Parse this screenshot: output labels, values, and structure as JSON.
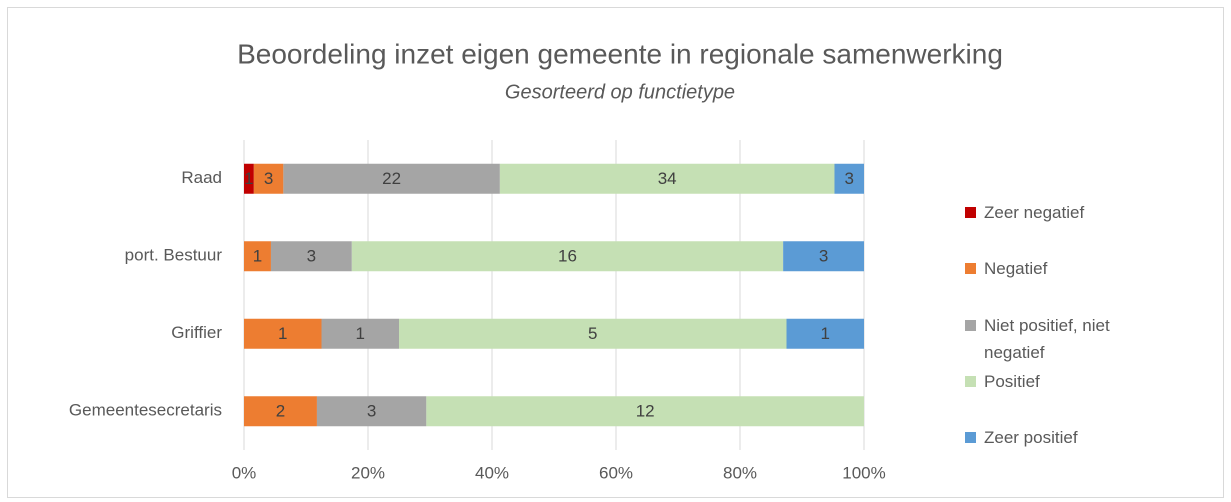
{
  "chart_data": {
    "type": "stacked_bar_percent",
    "orientation": "horizontal",
    "title": "Beoordeling inzet eigen gemeente in regionale samenwerking",
    "subtitle": "Gesorteerd op functietype",
    "categories": [
      "Raad",
      "port. Bestuur",
      "Griffier",
      "Gemeentesecretaris"
    ],
    "series": [
      {
        "name": "Zeer negatief",
        "color": "#c00000",
        "values": [
          1,
          null,
          null,
          null
        ]
      },
      {
        "name": "Negatief",
        "color": "#ed7d31",
        "values": [
          3,
          1,
          1,
          2
        ]
      },
      {
        "name": "Niet positief, niet negatief",
        "color": "#a5a5a5",
        "values": [
          22,
          3,
          1,
          3
        ]
      },
      {
        "name": "Positief",
        "color": "#c5e0b4",
        "values": [
          34,
          16,
          5,
          12
        ]
      },
      {
        "name": "Zeer positief",
        "color": "#5b9bd5",
        "values": [
          3,
          3,
          1,
          null
        ]
      }
    ],
    "xlim": [
      0,
      100
    ],
    "xticks": [
      {
        "value": 0,
        "label": "0%"
      },
      {
        "value": 20,
        "label": "20%"
      },
      {
        "value": 40,
        "label": "40%"
      },
      {
        "value": 60,
        "label": "60%"
      },
      {
        "value": 80,
        "label": "80%"
      },
      {
        "value": 100,
        "label": "100%"
      }
    ],
    "grid": true,
    "legend": "right"
  }
}
